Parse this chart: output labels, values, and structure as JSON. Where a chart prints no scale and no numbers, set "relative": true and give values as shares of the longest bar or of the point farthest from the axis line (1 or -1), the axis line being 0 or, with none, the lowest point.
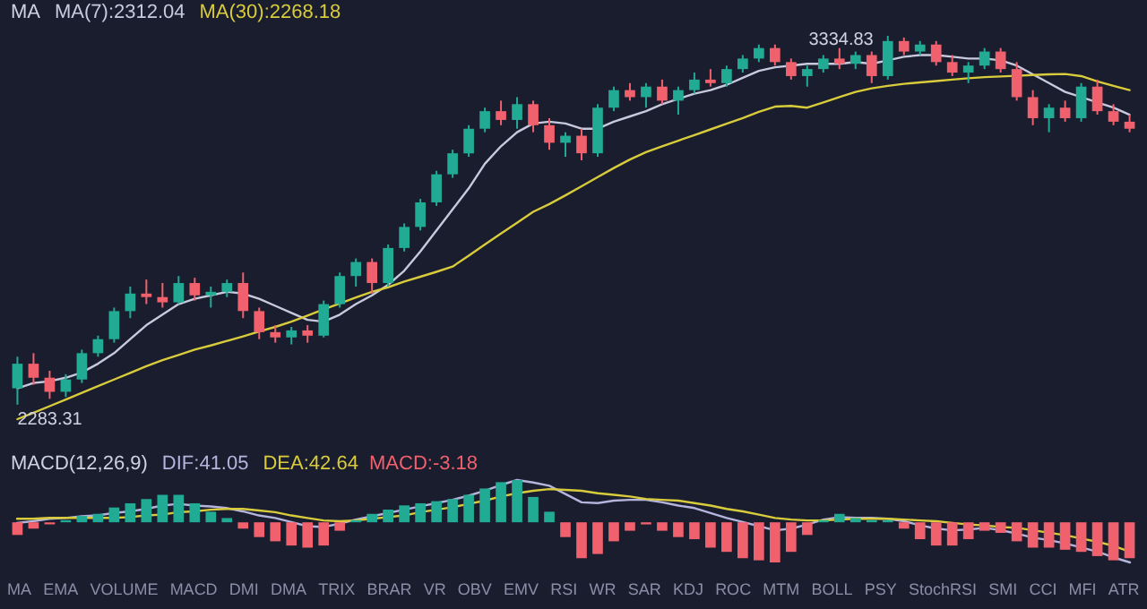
{
  "chart_data": [
    {
      "type": "candlestick",
      "legend_title": "MA",
      "tick_labels": false,
      "categories": [
        null,
        null,
        null,
        null,
        null,
        null,
        null,
        null,
        null,
        null,
        null,
        null,
        null,
        null,
        null,
        null,
        null,
        null,
        null,
        null,
        null,
        null,
        null,
        null,
        null,
        null,
        null,
        null,
        null,
        null,
        null,
        null,
        null,
        null,
        null,
        null,
        null,
        null,
        null,
        null,
        null,
        null,
        null,
        null,
        null,
        null,
        null,
        null,
        null,
        null,
        null,
        null,
        null,
        null,
        null,
        null,
        null,
        null,
        null,
        null,
        null,
        null,
        null,
        null,
        null,
        null,
        null,
        null,
        null,
        null
      ],
      "ohlc": [
        [
          2330,
          2420,
          2283.31,
          2400
        ],
        [
          2400,
          2430,
          2340,
          2360
        ],
        [
          2360,
          2380,
          2300,
          2320
        ],
        [
          2320,
          2370,
          2305,
          2355
        ],
        [
          2355,
          2440,
          2345,
          2430
        ],
        [
          2430,
          2480,
          2420,
          2470
        ],
        [
          2470,
          2560,
          2460,
          2550
        ],
        [
          2550,
          2620,
          2530,
          2600
        ],
        [
          2600,
          2640,
          2570,
          2590
        ],
        [
          2590,
          2630,
          2560,
          2575
        ],
        [
          2575,
          2650,
          2570,
          2630
        ],
        [
          2630,
          2645,
          2580,
          2595
        ],
        [
          2595,
          2620,
          2560,
          2605
        ],
        [
          2605,
          2640,
          2590,
          2630
        ],
        [
          2630,
          2660,
          2530,
          2550
        ],
        [
          2550,
          2560,
          2470,
          2490
        ],
        [
          2490,
          2510,
          2460,
          2475
        ],
        [
          2475,
          2505,
          2455,
          2495
        ],
        [
          2495,
          2510,
          2460,
          2480
        ],
        [
          2480,
          2580,
          2475,
          2570
        ],
        [
          2570,
          2660,
          2560,
          2650
        ],
        [
          2650,
          2700,
          2620,
          2690
        ],
        [
          2690,
          2700,
          2600,
          2630
        ],
        [
          2630,
          2740,
          2620,
          2730
        ],
        [
          2730,
          2800,
          2720,
          2790
        ],
        [
          2790,
          2870,
          2780,
          2860
        ],
        [
          2860,
          2950,
          2850,
          2940
        ],
        [
          2940,
          3010,
          2930,
          3000
        ],
        [
          3000,
          3080,
          2990,
          3070
        ],
        [
          3070,
          3130,
          3060,
          3120
        ],
        [
          3120,
          3150,
          3080,
          3095
        ],
        [
          3095,
          3160,
          3070,
          3140
        ],
        [
          3140,
          3150,
          3060,
          3080
        ],
        [
          3080,
          3100,
          3010,
          3030
        ],
        [
          3030,
          3060,
          2990,
          3050
        ],
        [
          3050,
          3070,
          2980,
          3000
        ],
        [
          3000,
          3140,
          2990,
          3130
        ],
        [
          3130,
          3190,
          3120,
          3180
        ],
        [
          3180,
          3200,
          3150,
          3160
        ],
        [
          3160,
          3200,
          3130,
          3190
        ],
        [
          3190,
          3210,
          3140,
          3150
        ],
        [
          3150,
          3190,
          3110,
          3180
        ],
        [
          3180,
          3230,
          3170,
          3210
        ],
        [
          3210,
          3240,
          3190,
          3200
        ],
        [
          3200,
          3250,
          3190,
          3240
        ],
        [
          3240,
          3280,
          3230,
          3270
        ],
        [
          3270,
          3310,
          3260,
          3300
        ],
        [
          3300,
          3310,
          3250,
          3260
        ],
        [
          3260,
          3270,
          3210,
          3220
        ],
        [
          3220,
          3250,
          3190,
          3240
        ],
        [
          3240,
          3280,
          3230,
          3270
        ],
        [
          3270,
          3300,
          3240,
          3255
        ],
        [
          3255,
          3290,
          3240,
          3280
        ],
        [
          3280,
          3290,
          3200,
          3220
        ],
        [
          3220,
          3334.83,
          3210,
          3320
        ],
        [
          3320,
          3330,
          3280,
          3290
        ],
        [
          3290,
          3320,
          3280,
          3310
        ],
        [
          3310,
          3320,
          3250,
          3260
        ],
        [
          3260,
          3280,
          3220,
          3230
        ],
        [
          3230,
          3260,
          3200,
          3250
        ],
        [
          3250,
          3300,
          3240,
          3290
        ],
        [
          3290,
          3300,
          3230,
          3240
        ],
        [
          3240,
          3260,
          3150,
          3160
        ],
        [
          3160,
          3180,
          3080,
          3100
        ],
        [
          3100,
          3140,
          3060,
          3130
        ],
        [
          3130,
          3150,
          3090,
          3100
        ],
        [
          3100,
          3200,
          3090,
          3190
        ],
        [
          3190,
          3210,
          3110,
          3120
        ],
        [
          3120,
          3140,
          3080,
          3090
        ],
        [
          3090,
          3110,
          3060,
          3070
        ]
      ],
      "colors": [
        "#22ab94",
        "#f0616d",
        "#f0616d",
        "#22ab94",
        "#22ab94",
        "#22ab94",
        "#22ab94",
        "#22ab94",
        "#f0616d",
        "#f0616d",
        "#22ab94",
        "#f0616d",
        "#22ab94",
        "#22ab94",
        "#f0616d",
        "#f0616d",
        "#f0616d",
        "#22ab94",
        "#f0616d",
        "#22ab94",
        "#22ab94",
        "#22ab94",
        "#f0616d",
        "#22ab94",
        "#22ab94",
        "#22ab94",
        "#22ab94",
        "#22ab94",
        "#22ab94",
        "#22ab94",
        "#f0616d",
        "#22ab94",
        "#f0616d",
        "#f0616d",
        "#22ab94",
        "#f0616d",
        "#22ab94",
        "#22ab94",
        "#f0616d",
        "#22ab94",
        "#f0616d",
        "#22ab94",
        "#22ab94",
        "#f0616d",
        "#22ab94",
        "#22ab94",
        "#22ab94",
        "#f0616d",
        "#f0616d",
        "#22ab94",
        "#22ab94",
        "#f0616d",
        "#22ab94",
        "#f0616d",
        "#22ab94",
        "#f0616d",
        "#22ab94",
        "#f0616d",
        "#f0616d",
        "#22ab94",
        "#22ab94",
        "#f0616d",
        "#f0616d",
        "#f0616d",
        "#22ab94",
        "#f0616d",
        "#22ab94",
        "#f0616d",
        "#f0616d",
        "#f0616d"
      ],
      "series": [
        {
          "name": "MA(7):2312.04",
          "type": "line",
          "color": "#c9c9de",
          "values": [
            2330,
            2345,
            2350,
            2360,
            2375,
            2400,
            2430,
            2470,
            2510,
            2540,
            2570,
            2585,
            2595,
            2605,
            2600,
            2585,
            2565,
            2545,
            2525,
            2520,
            2540,
            2570,
            2595,
            2625,
            2665,
            2720,
            2780,
            2840,
            2900,
            2970,
            3020,
            3060,
            3085,
            3090,
            3085,
            3070,
            3070,
            3090,
            3105,
            3120,
            3140,
            3155,
            3170,
            3180,
            3195,
            3215,
            3235,
            3245,
            3250,
            3255,
            3255,
            3255,
            3260,
            3255,
            3265,
            3275,
            3280,
            3280,
            3275,
            3270,
            3270,
            3265,
            3250,
            3225,
            3200,
            3175,
            3160,
            3145,
            3130,
            3110
          ]
        },
        {
          "name": "MA(30):2268.18",
          "type": "line",
          "color": "#d8cc3c",
          "values": [
            2242,
            2260,
            2279,
            2298,
            2317,
            2336,
            2355,
            2374,
            2393,
            2410,
            2425,
            2440,
            2452,
            2465,
            2478,
            2492,
            2505,
            2520,
            2537,
            2555,
            2572,
            2589,
            2605,
            2618,
            2634,
            2648,
            2662,
            2677,
            2708,
            2740,
            2771,
            2802,
            2833,
            2855,
            2880,
            2906,
            2932,
            2958,
            2982,
            3003,
            3020,
            3036,
            3052,
            3068,
            3084,
            3100,
            3118,
            3133,
            3135,
            3130,
            3145,
            3160,
            3175,
            3185,
            3192,
            3198,
            3202,
            3206,
            3210,
            3214,
            3217,
            3219,
            3221,
            3223,
            3225,
            3226,
            3220,
            3205,
            3192,
            3180
          ]
        }
      ],
      "annotations": [
        "3334.83",
        "2283.31"
      ]
    },
    {
      "type": "line",
      "relative": true,
      "legend_title": "MACD(12,26,9)",
      "tick_labels": false,
      "categories": [
        null,
        null,
        null,
        null,
        null,
        null,
        null,
        null,
        null,
        null,
        null,
        null,
        null,
        null,
        null,
        null,
        null,
        null,
        null,
        null,
        null,
        null,
        null,
        null,
        null,
        null,
        null,
        null,
        null,
        null,
        null,
        null,
        null,
        null,
        null,
        null,
        null,
        null,
        null,
        null,
        null,
        null,
        null,
        null,
        null,
        null,
        null,
        null,
        null,
        null,
        null,
        null,
        null,
        null,
        null,
        null,
        null,
        null,
        null,
        null,
        null,
        null,
        null,
        null,
        null,
        null,
        null,
        null,
        null,
        null
      ],
      "series": [
        {
          "name": "DIF:41.05",
          "color": "#b4b4dc",
          "values": [
            0.48,
            0.5,
            0.53,
            0.54,
            0.56,
            0.57,
            0.6,
            0.62,
            0.65,
            0.69,
            0.71,
            0.69,
            0.68,
            0.66,
            0.62,
            0.57,
            0.54,
            0.49,
            0.44,
            0.43,
            0.47,
            0.52,
            0.56,
            0.6,
            0.64,
            0.68,
            0.72,
            0.76,
            0.81,
            0.87,
            0.94,
            1,
            0.97,
            0.93,
            0.83,
            0.73,
            0.72,
            0.75,
            0.76,
            0.76,
            0.73,
            0.69,
            0.66,
            0.6,
            0.54,
            0.49,
            0.44,
            0.39,
            0.41,
            0.46,
            0.52,
            0.55,
            0.54,
            0.54,
            0.53,
            0.5,
            0.45,
            0.41,
            0.39,
            0.4,
            0.42,
            0.39,
            0.35,
            0.3,
            0.27,
            0.23,
            0.18,
            0.13,
            0.06,
            0
          ]
        },
        {
          "name": "DEA:42.64",
          "color": "#d8cc3c",
          "values": [
            0.53,
            0.53,
            0.54,
            0.54,
            0.54,
            0.54,
            0.54,
            0.55,
            0.57,
            0.58,
            0.61,
            0.62,
            0.64,
            0.65,
            0.65,
            0.63,
            0.61,
            0.57,
            0.54,
            0.51,
            0.5,
            0.51,
            0.53,
            0.55,
            0.57,
            0.61,
            0.64,
            0.67,
            0.71,
            0.75,
            0.8,
            0.84,
            0.87,
            0.89,
            0.88,
            0.87,
            0.84,
            0.82,
            0.8,
            0.77,
            0.76,
            0.75,
            0.72,
            0.69,
            0.65,
            0.62,
            0.58,
            0.54,
            0.52,
            0.51,
            0.51,
            0.52,
            0.53,
            0.53,
            0.53,
            0.52,
            0.51,
            0.5,
            0.48,
            0.46,
            0.45,
            0.43,
            0.42,
            0.39,
            0.36,
            0.33,
            0.29,
            0.25,
            0.2,
            0.13
          ]
        }
      ]
    },
    {
      "type": "bar",
      "relative": true,
      "tick_labels": false,
      "categories": [
        null,
        null,
        null,
        null,
        null,
        null,
        null,
        null,
        null,
        null,
        null,
        null,
        null,
        null,
        null,
        null,
        null,
        null,
        null,
        null,
        null,
        null,
        null,
        null,
        null,
        null,
        null,
        null,
        null,
        null,
        null,
        null,
        null,
        null,
        null,
        null,
        null,
        null,
        null,
        null,
        null,
        null,
        null,
        null,
        null,
        null,
        null,
        null,
        null,
        null,
        null,
        null,
        null,
        null,
        null,
        null,
        null,
        null,
        null,
        null,
        null,
        null,
        null,
        null,
        null,
        null,
        null,
        null,
        null,
        null
      ],
      "series": [
        {
          "name": "MACD:-3.18",
          "color": "#f0616d",
          "values": [
            -0.3,
            -0.15,
            -0.05,
            0.05,
            0.15,
            0.2,
            0.35,
            0.45,
            0.55,
            0.65,
            0.65,
            0.45,
            0.25,
            0.1,
            -0.15,
            -0.35,
            -0.45,
            -0.55,
            -0.6,
            -0.55,
            -0.2,
            0.05,
            0.2,
            0.3,
            0.4,
            0.45,
            0.5,
            0.55,
            0.65,
            0.8,
            0.95,
            1,
            0.6,
            0.25,
            -0.35,
            -0.85,
            -0.75,
            -0.45,
            -0.2,
            -0.05,
            -0.2,
            -0.35,
            -0.4,
            -0.6,
            -0.7,
            -0.85,
            -0.9,
            -0.95,
            -0.7,
            -0.3,
            0.05,
            0.2,
            0.1,
            0.05,
            0.05,
            -0.15,
            -0.4,
            -0.55,
            -0.55,
            -0.4,
            -0.2,
            -0.25,
            -0.45,
            -0.6,
            -0.6,
            -0.65,
            -0.7,
            -0.8,
            -0.9,
            -0.85
          ],
          "colors": [
            "#f0616d",
            "#f0616d",
            "#f0616d",
            "#22ab94",
            "#22ab94",
            "#22ab94",
            "#22ab94",
            "#22ab94",
            "#22ab94",
            "#22ab94",
            "#22ab94",
            "#22ab94",
            "#22ab94",
            "#22ab94",
            "#f0616d",
            "#f0616d",
            "#f0616d",
            "#f0616d",
            "#f0616d",
            "#f0616d",
            "#f0616d",
            "#22ab94",
            "#22ab94",
            "#22ab94",
            "#22ab94",
            "#22ab94",
            "#22ab94",
            "#22ab94",
            "#22ab94",
            "#22ab94",
            "#22ab94",
            "#22ab94",
            "#22ab94",
            "#22ab94",
            "#f0616d",
            "#f0616d",
            "#f0616d",
            "#f0616d",
            "#f0616d",
            "#f0616d",
            "#f0616d",
            "#f0616d",
            "#f0616d",
            "#f0616d",
            "#f0616d",
            "#f0616d",
            "#f0616d",
            "#f0616d",
            "#f0616d",
            "#f0616d",
            "#22ab94",
            "#22ab94",
            "#22ab94",
            "#22ab94",
            "#22ab94",
            "#f0616d",
            "#f0616d",
            "#f0616d",
            "#f0616d",
            "#f0616d",
            "#f0616d",
            "#f0616d",
            "#f0616d",
            "#f0616d",
            "#f0616d",
            "#f0616d",
            "#f0616d",
            "#f0616d",
            "#f0616d",
            "#f0616d"
          ]
        }
      ],
      "annotations": [
        "MA",
        "EMA",
        "VOLUME",
        "MACD",
        "DMI",
        "DMA",
        "TRIX",
        "BRAR",
        "VR",
        "OBV",
        "EMV",
        "RSI",
        "WR",
        "SAR",
        "KDJ",
        "ROC",
        "MTM",
        "BOLL",
        "PSY",
        "StochRSI",
        "SMI",
        "CCI",
        "MFI",
        "ATR"
      ]
    }
  ]
}
